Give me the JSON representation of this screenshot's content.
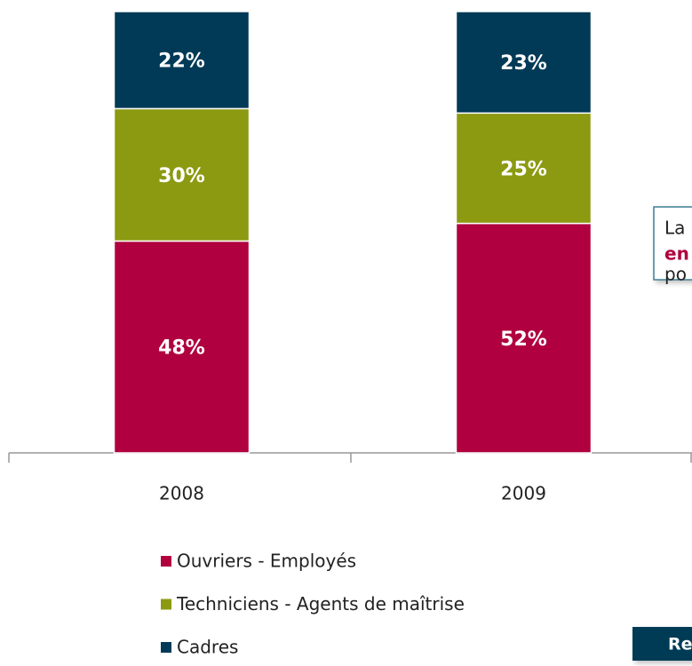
{
  "chart_data": {
    "type": "stacked_bar",
    "categories": [
      "2008",
      "2009"
    ],
    "series": [
      {
        "name": "Ouvriers - Employés",
        "color": "#b0003f",
        "values": [
          48,
          52
        ],
        "value_labels": [
          "48%",
          "52%"
        ]
      },
      {
        "name": "Techniciens - Agents de maîtrise",
        "color": "#8c9a12",
        "values": [
          30,
          25
        ],
        "value_labels": [
          "30%",
          "25%"
        ]
      },
      {
        "name": "Cadres",
        "color": "#003a57",
        "values": [
          22,
          23
        ],
        "value_labels": [
          "22%",
          "23%"
        ]
      }
    ],
    "ylim": [
      0,
      100
    ]
  },
  "callout": {
    "lines": [
      "La",
      "en",
      "po"
    ]
  },
  "button": {
    "label": "Re"
  }
}
